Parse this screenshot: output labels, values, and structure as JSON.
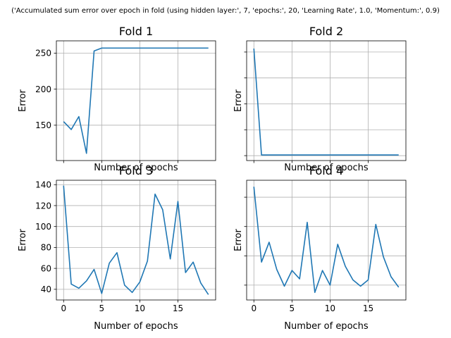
{
  "suptitle": "('Accumulated sum error over epoch in fold (using hidden layer:', 7, 'epochs:', 20, 'Learning Rate', 1.0, 'Momentum:', 0.9)",
  "colors": {
    "line": "#1f77b4",
    "grid": "#b0b0b0",
    "axes": "#000000"
  },
  "chart_data": [
    {
      "type": "line",
      "title": "Fold 1",
      "xlabel": "Number of epochs",
      "ylabel": "Error",
      "xlim": [
        -0.95,
        19.95
      ],
      "ylim": [
        101,
        267
      ],
      "xticks": [
        0,
        5,
        10,
        15
      ],
      "xtick_labels": [
        "",
        "",
        "",
        ""
      ],
      "yticks": [
        150,
        200,
        250
      ],
      "ytick_labels": [
        "150",
        "200",
        "250"
      ],
      "grid": true,
      "x": [
        0,
        1,
        2,
        3,
        4,
        5,
        6,
        7,
        8,
        9,
        10,
        11,
        12,
        13,
        14,
        15,
        16,
        17,
        18,
        19
      ],
      "values": [
        155,
        144,
        162,
        111,
        253,
        257,
        257,
        257,
        257,
        257,
        257,
        257,
        257,
        257,
        257,
        257,
        257,
        257,
        257,
        257
      ]
    },
    {
      "type": "line",
      "title": "Fold 2",
      "xlabel": "Number of epochs",
      "ylabel": "Error",
      "xlim": [
        -0.95,
        19.95
      ],
      "ylim": [
        97,
        268
      ],
      "xticks": [
        0,
        5,
        10,
        15
      ],
      "xtick_labels": [
        "",
        "",
        "",
        ""
      ],
      "yticks": [
        104,
        141,
        178,
        215,
        252
      ],
      "ytick_labels": [
        "",
        "",
        "",
        "",
        ""
      ],
      "grid": true,
      "x": [
        0,
        1,
        2,
        3,
        4,
        5,
        6,
        7,
        8,
        9,
        10,
        11,
        12,
        13,
        14,
        15,
        16,
        17,
        18,
        19
      ],
      "values": [
        257,
        105,
        105,
        105,
        105,
        105,
        105,
        105,
        105,
        105,
        105,
        105,
        105,
        105,
        105,
        105,
        105,
        105,
        105,
        105
      ]
    },
    {
      "type": "line",
      "title": "Fold 3",
      "xlabel": "Number of epochs",
      "ylabel": "Error",
      "xlim": [
        -0.95,
        19.95
      ],
      "ylim": [
        29.8,
        144.2
      ],
      "xticks": [
        0,
        5,
        10,
        15
      ],
      "xtick_labels": [
        "0",
        "5",
        "10",
        "15"
      ],
      "yticks": [
        40,
        60,
        80,
        100,
        120,
        140
      ],
      "ytick_labels": [
        "40",
        "60",
        "80",
        "100",
        "120",
        "140"
      ],
      "grid": true,
      "x": [
        0,
        1,
        2,
        3,
        4,
        5,
        6,
        7,
        8,
        9,
        10,
        11,
        12,
        13,
        14,
        15,
        16,
        17,
        18,
        19
      ],
      "values": [
        139,
        45,
        41,
        48,
        59,
        36,
        65,
        75,
        44,
        37,
        47,
        67,
        131,
        116,
        69,
        124,
        56,
        66,
        46,
        35
      ]
    },
    {
      "type": "line",
      "title": "Fold 4",
      "xlabel": "Number of epochs",
      "ylabel": "Error",
      "xlim": [
        -0.95,
        19.95
      ],
      "ylim": [
        29.8,
        144.2
      ],
      "xticks": [
        0,
        5,
        10,
        15
      ],
      "xtick_labels": [
        "0",
        "5",
        "10",
        "15"
      ],
      "yticks": [
        44,
        72,
        100,
        128
      ],
      "ytick_labels": [
        "",
        "",
        "",
        ""
      ],
      "grid": true,
      "x": [
        0,
        1,
        2,
        3,
        4,
        5,
        6,
        7,
        8,
        9,
        10,
        11,
        12,
        13,
        14,
        15,
        16,
        17,
        18,
        19
      ],
      "values": [
        138,
        66,
        85,
        59,
        43,
        58,
        50,
        104,
        37,
        58,
        44,
        83,
        62,
        49,
        43,
        49,
        102,
        71,
        52,
        42
      ]
    }
  ]
}
